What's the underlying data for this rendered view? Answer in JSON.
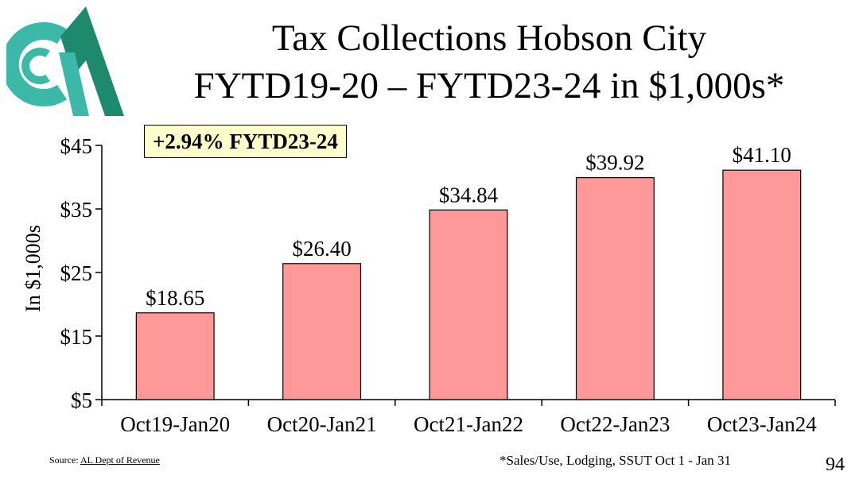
{
  "colors": {
    "bar": "#ff9999",
    "badge_bg": "#ffffcc",
    "logo_teal": "#3bb8a8",
    "logo_green": "#1d8a6e"
  },
  "header": {
    "title_line1": "Tax Collections Hobson City",
    "title_line2": "FYTD19-20 – FYTD23-24 in $1,000s*",
    "badge": "+2.94% FYTD23-24"
  },
  "chart_data": {
    "type": "bar",
    "title": "Tax Collections Hobson City FYTD19-20 – FYTD23-24 in $1,000s*",
    "categories": [
      "Oct19-Jan20",
      "Oct20-Jan21",
      "Oct21-Jan22",
      "Oct22-Jan23",
      "Oct23-Jan24"
    ],
    "values": [
      18.65,
      26.4,
      34.84,
      39.92,
      41.1
    ],
    "value_labels": [
      "$18.65",
      "$26.40",
      "$34.84",
      "$39.92",
      "$41.10"
    ],
    "ylabel": "In $1,000s",
    "xlabel": "",
    "ylim": [
      5,
      45
    ],
    "yticks": [
      5,
      15,
      25,
      35,
      45
    ],
    "ytick_labels": [
      "$5",
      "$15",
      "$25",
      "$35",
      "$45"
    ],
    "grid": false,
    "legend": false
  },
  "footer": {
    "source_label": "Source: ",
    "source_link": "AL Dept of Revenue",
    "footnote": "*Sales/Use, Lodging, SSUT Oct 1 - Jan 31",
    "page_number": "94"
  }
}
